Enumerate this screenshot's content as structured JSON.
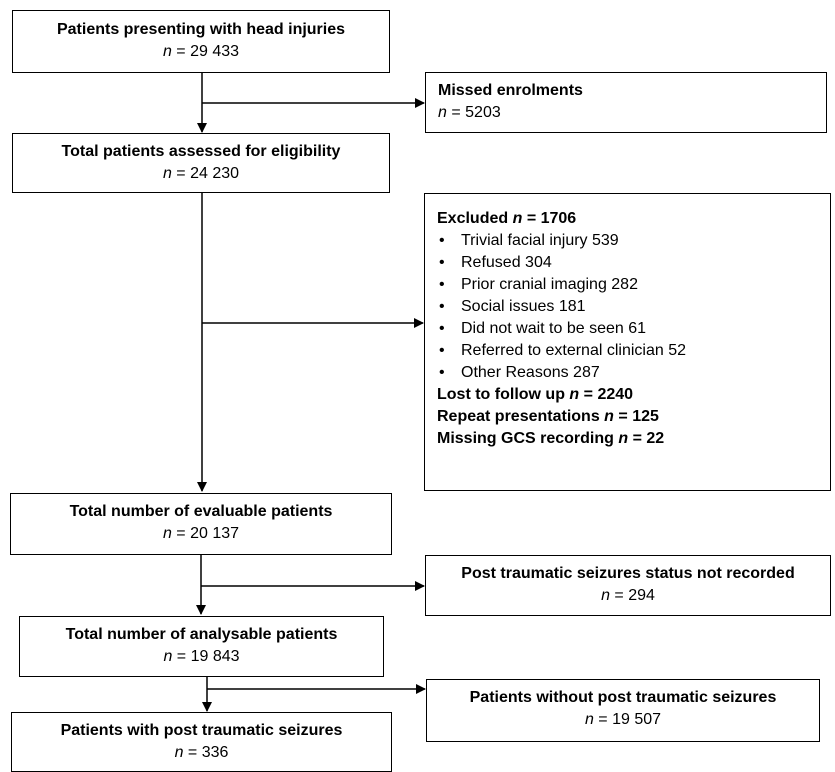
{
  "boxes": {
    "presenting": {
      "title": "Patients presenting with head injuries",
      "n": "29 433"
    },
    "missed": {
      "title": "Missed enrolments",
      "n": "5203"
    },
    "assessed": {
      "title": "Total patients assessed for eligibility",
      "n": "24 230"
    },
    "excluded": {
      "title": "Excluded",
      "n": "1706",
      "reasons": [
        "Trivial facial injury 539",
        "Refused 304",
        "Prior cranial imaging 282",
        "Social issues 181",
        "Did not wait to be seen 61",
        "Referred to external clinician 52",
        "Other Reasons 287"
      ],
      "lost": {
        "label": "Lost to follow up",
        "n": "2240"
      },
      "repeat": {
        "label": "Repeat presentations",
        "n": "125"
      },
      "missing_gcs": {
        "label": "Missing GCS recording",
        "n": "22"
      }
    },
    "evaluable": {
      "title": "Total number of evaluable patients",
      "n": "20 137"
    },
    "seizure_status": {
      "title": "Post traumatic seizures status not recorded",
      "n": "294"
    },
    "analysable": {
      "title": "Total number of analysable patients",
      "n": "19 843"
    },
    "without_pts": {
      "title": "Patients without post traumatic seizures",
      "n": "19 507"
    },
    "with_pts": {
      "title": "Patients with post traumatic seizures",
      "n": "336"
    }
  }
}
